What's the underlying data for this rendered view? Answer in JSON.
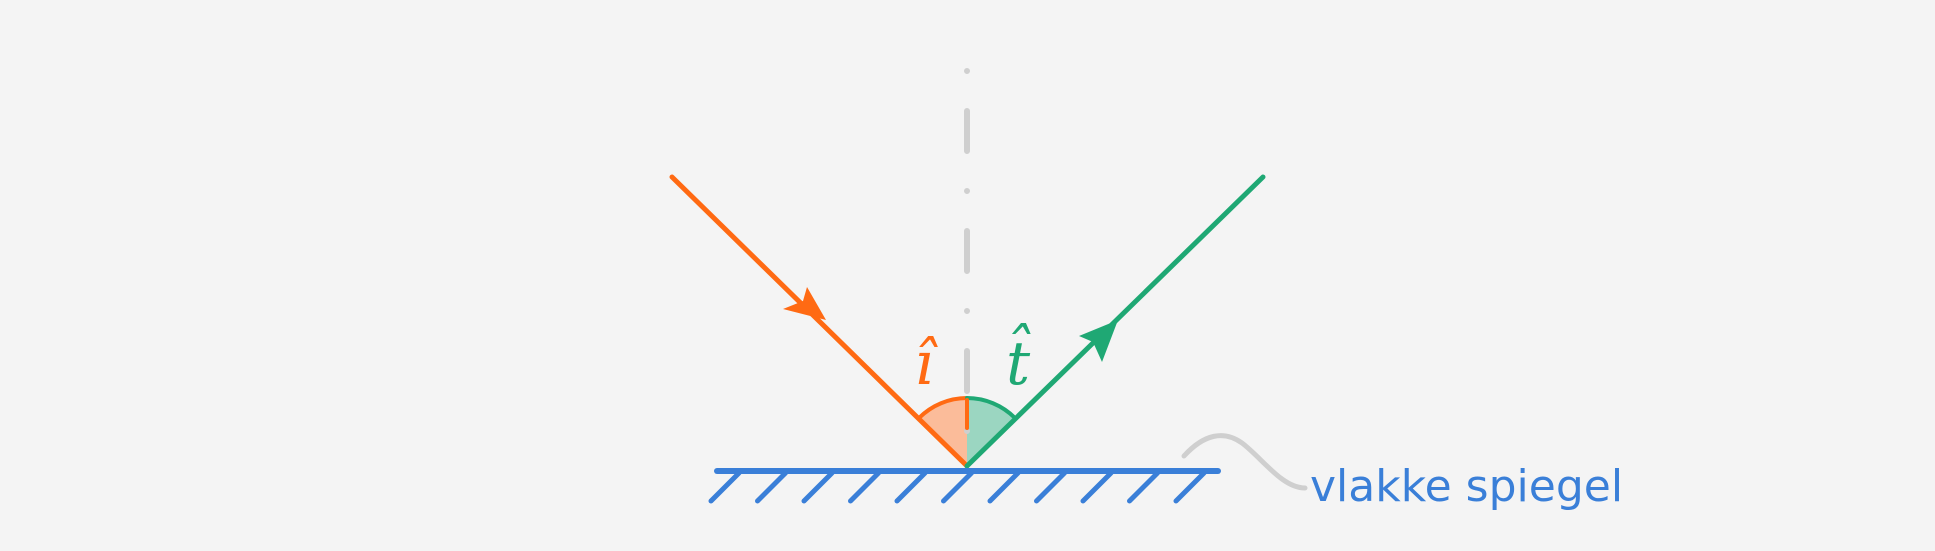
{
  "mirror": {
    "label": "vlakke spiegel",
    "color": "#3a7fd8",
    "hatch_count": 11
  },
  "normal": {
    "color": "#cfcfcf"
  },
  "incident_ray": {
    "color": "#ff6a13",
    "angle_fill": "#fbbc9a",
    "angle_label": "î"
  },
  "reflected_ray": {
    "color": "#1fa874",
    "angle_fill": "#9bd6c1",
    "angle_label": "t̂"
  },
  "leader_line": {
    "color": "#cfcfcf"
  }
}
